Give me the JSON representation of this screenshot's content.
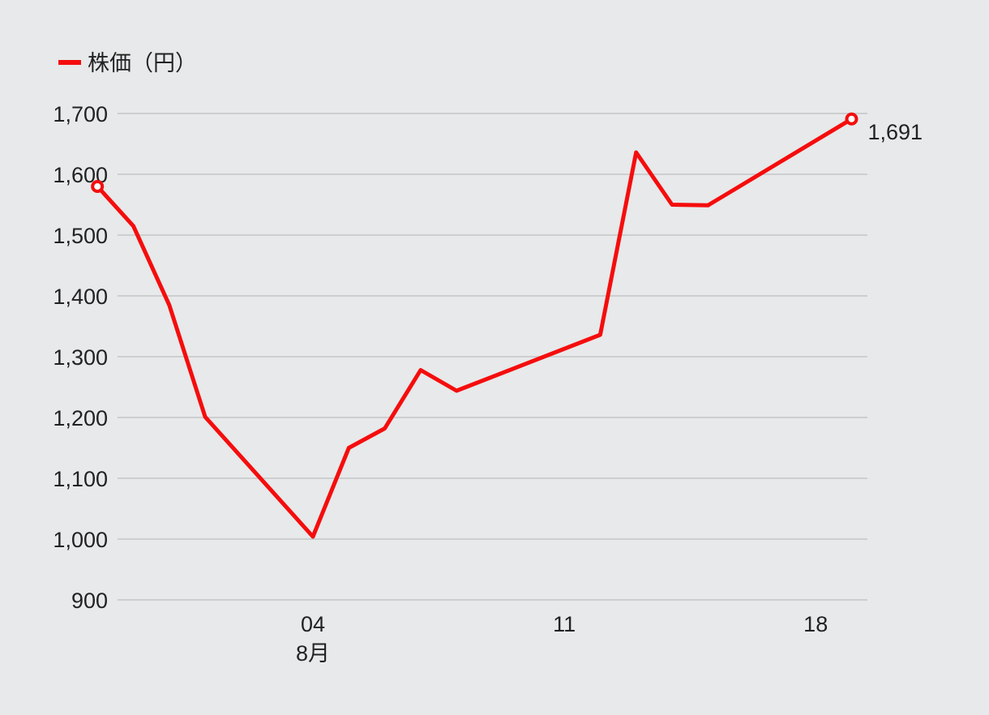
{
  "chart_data": {
    "type": "line",
    "legend": {
      "label": "株価（円）",
      "placement": "top-left"
    },
    "colors": {
      "series": "#f50d0d",
      "background": "#e7e9ea",
      "grid": "#c3c5c6"
    },
    "ylim": [
      900,
      1700
    ],
    "yticks": [
      "900",
      "1,000",
      "1,100",
      "1,200",
      "1,300",
      "1,400",
      "1,500",
      "1,600",
      "1,700"
    ],
    "ytick_values": [
      900,
      1000,
      1100,
      1200,
      1300,
      1400,
      1500,
      1600,
      1700
    ],
    "xticks": [
      {
        "date": "2024-08-04",
        "label": "04",
        "sublabel": "8月"
      },
      {
        "date": "2024-08-11",
        "label": "11",
        "sublabel": ""
      },
      {
        "date": "2024-08-18",
        "label": "18",
        "sublabel": ""
      }
    ],
    "series": [
      {
        "name": "株価（円）",
        "points": [
          {
            "x": "2024-07-29",
            "y": 1580
          },
          {
            "x": "2024-07-30",
            "y": 1515
          },
          {
            "x": "2024-07-31",
            "y": 1385
          },
          {
            "x": "2024-08-01",
            "y": 1201
          },
          {
            "x": "2024-08-04",
            "y": 1004
          },
          {
            "x": "2024-08-05",
            "y": 1150
          },
          {
            "x": "2024-08-06",
            "y": 1182
          },
          {
            "x": "2024-08-07",
            "y": 1278
          },
          {
            "x": "2024-08-08",
            "y": 1244
          },
          {
            "x": "2024-08-12",
            "y": 1336
          },
          {
            "x": "2024-08-13",
            "y": 1636
          },
          {
            "x": "2024-08-14",
            "y": 1550
          },
          {
            "x": "2024-08-15",
            "y": 1549
          },
          {
            "x": "2024-08-19",
            "y": 1691
          }
        ]
      }
    ],
    "annotations": [
      {
        "x": "2024-08-19",
        "text": "1,691"
      }
    ],
    "grid": true
  }
}
